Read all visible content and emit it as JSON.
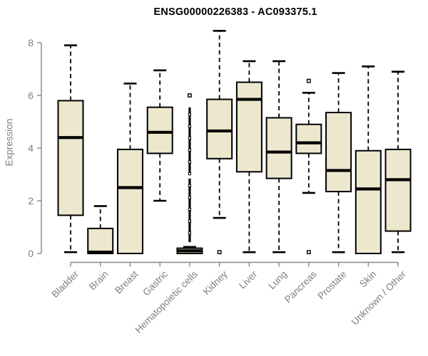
{
  "page": {
    "title": "ENSG00000226383 - AC093375.1"
  },
  "chart_data": {
    "type": "boxplot",
    "title": "ENSG00000226383 - AC093375.1",
    "xlabel": "",
    "ylabel": "Expression",
    "ylim": [
      0,
      8.5
    ],
    "yticks": [
      0,
      2,
      4,
      6,
      8
    ],
    "grid": false,
    "legend": false,
    "box_fill": "#ede8cd",
    "box_stroke": "#000000",
    "axis_color": "#878787",
    "text_color": "#7f7f7f",
    "title_color": "#000000",
    "categories": [
      "Bladder",
      "Brain",
      "Breast",
      "Gastric",
      "Hematopoietic cells",
      "Kidney",
      "Liver",
      "Lung",
      "Pancreas",
      "Prostate",
      "Skin",
      "Unknown / Other"
    ],
    "series": [
      {
        "name": "Bladder",
        "min": 0.05,
        "q1": 1.45,
        "median": 4.4,
        "q3": 5.8,
        "max": 7.9,
        "outliers": []
      },
      {
        "name": "Brain",
        "min": 0,
        "q1": 0,
        "median": 0.05,
        "q3": 0.95,
        "max": 1.8,
        "outliers": []
      },
      {
        "name": "Breast",
        "min": 0,
        "q1": 0,
        "median": 2.5,
        "q3": 3.95,
        "max": 6.45,
        "outliers": []
      },
      {
        "name": "Gastric",
        "min": 2.0,
        "q1": 3.8,
        "median": 4.6,
        "q3": 5.55,
        "max": 6.95,
        "outliers": []
      },
      {
        "name": "Hematopoietic cells",
        "min": 0,
        "q1": 0,
        "median": 0.1,
        "q3": 0.2,
        "max": 0.25,
        "outliers": [
          6.0
        ],
        "outlier_bands": [
          [
            2.95,
            5.5
          ],
          [
            0.45,
            2.8
          ]
        ]
      },
      {
        "name": "Kidney",
        "min": 1.35,
        "q1": 3.6,
        "median": 4.65,
        "q3": 5.85,
        "max": 8.45,
        "outliers": [
          0.05
        ]
      },
      {
        "name": "Liver",
        "min": 0.05,
        "q1": 3.1,
        "median": 5.85,
        "q3": 6.5,
        "max": 7.3,
        "outliers": []
      },
      {
        "name": "Lung",
        "min": 0.05,
        "q1": 2.85,
        "median": 3.85,
        "q3": 5.15,
        "max": 7.3,
        "outliers": []
      },
      {
        "name": "Pancreas",
        "min": 2.3,
        "q1": 3.8,
        "median": 4.2,
        "q3": 4.9,
        "max": 6.1,
        "outliers": [
          6.55,
          0.05
        ]
      },
      {
        "name": "Prostate",
        "min": 0.05,
        "q1": 2.35,
        "median": 3.15,
        "q3": 5.35,
        "max": 6.85,
        "outliers": []
      },
      {
        "name": "Skin",
        "min": 0,
        "q1": 0,
        "median": 2.45,
        "q3": 3.9,
        "max": 7.1,
        "outliers": []
      },
      {
        "name": "Unknown / Other",
        "min": 0.05,
        "q1": 0.85,
        "median": 2.8,
        "q3": 3.95,
        "max": 6.9,
        "outliers": []
      }
    ]
  }
}
